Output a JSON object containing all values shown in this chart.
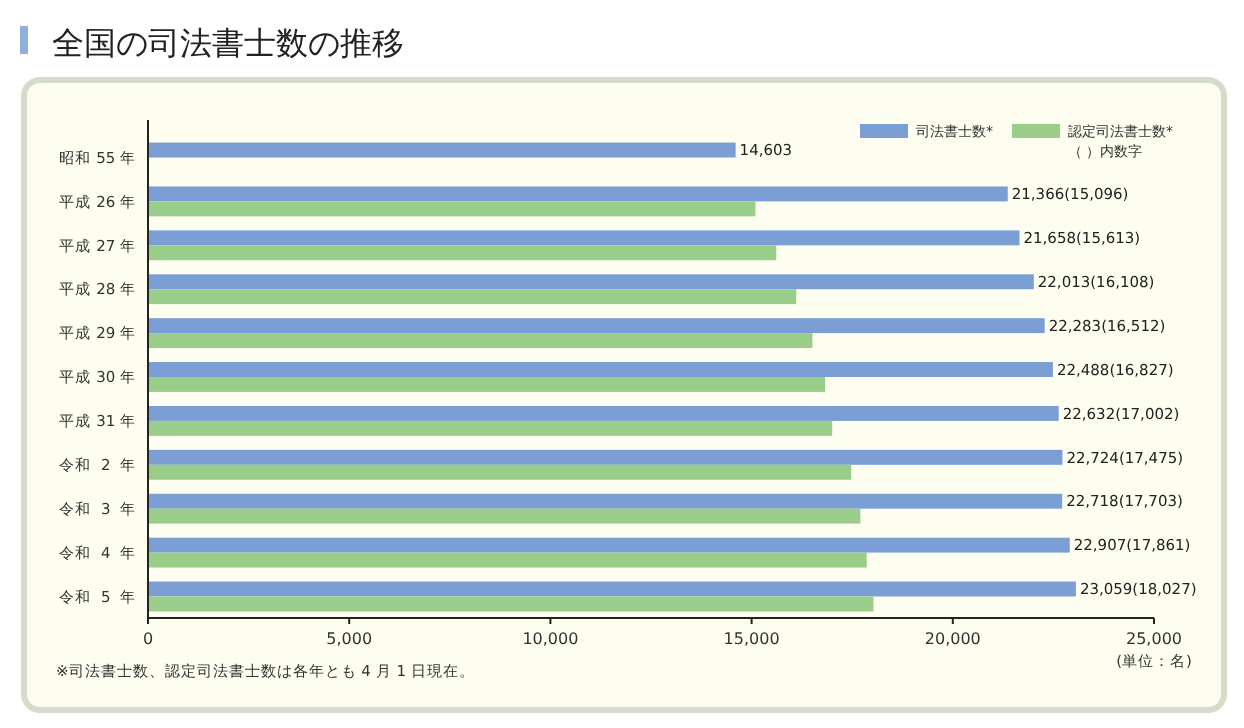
{
  "chart_data": {
    "type": "bar",
    "orientation": "horizontal",
    "title": "全国の司法書士数の推移",
    "categories": [
      "昭和 55 年",
      "平成 26 年",
      "平成 27 年",
      "平成 28 年",
      "平成 29 年",
      "平成 30 年",
      "平成 31 年",
      "令和  2  年",
      "令和  3  年",
      "令和  4  年",
      "令和  5  年"
    ],
    "series": [
      {
        "name": "司法書士数*",
        "color": "#7b9fd4",
        "values": [
          14603,
          21366,
          21658,
          22013,
          22283,
          22488,
          22632,
          22724,
          22718,
          22907,
          23059
        ],
        "value_labels": [
          "14,603",
          "21,366(15,096)",
          "21,658(15,613)",
          "22,013(16,108)",
          "22,283(16,512)",
          "22,488(16,827)",
          "22,632(17,002)",
          "22,724(17,475)",
          "22,718(17,703)",
          "22,907(17,861)",
          "23,059(18,027)"
        ]
      },
      {
        "name": "認定司法書士数*",
        "color": "#9acd8a",
        "values": [
          null,
          15096,
          15613,
          16108,
          16512,
          16827,
          17002,
          17475,
          17703,
          17861,
          18027
        ]
      }
    ],
    "xlim": [
      0,
      25000
    ],
    "xticks": [
      {
        "value": 0,
        "label": "0"
      },
      {
        "value": 5000,
        "label": "5,000"
      },
      {
        "value": 10000,
        "label": "10,000"
      },
      {
        "value": 15000,
        "label": "15,000"
      },
      {
        "value": 20000,
        "label": "20,000"
      },
      {
        "value": 25000,
        "label": "25,000"
      }
    ],
    "legend": "top right",
    "grid": false,
    "annotations": [
      "（ ）内数字",
      "(単位：名)",
      "※司法書士数、認定司法書士数は各年とも 4 月 1 日現在。"
    ]
  }
}
